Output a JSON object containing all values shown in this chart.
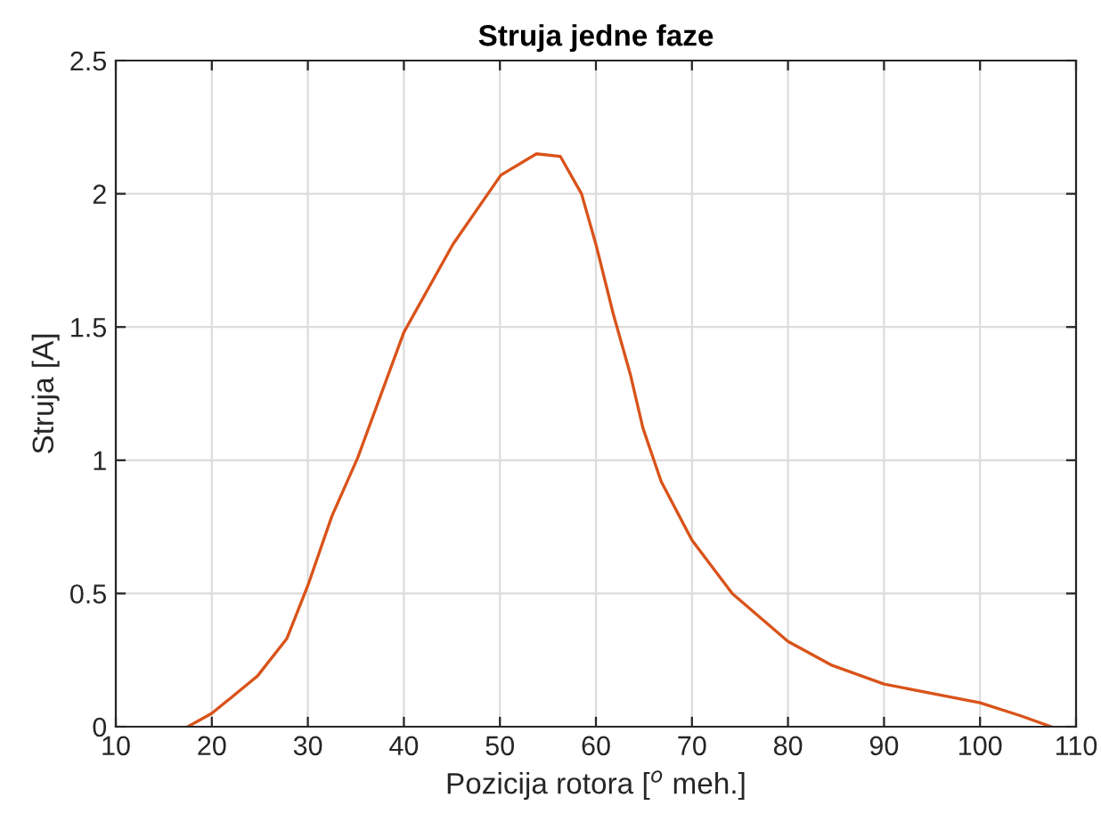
{
  "chart_data": {
    "type": "line",
    "title": "Struja jedne faze",
    "xlabel": "Pozicija rotora [$^{o}$ meh.]",
    "ylabel": "Struja [A]",
    "xlim": [
      10,
      110
    ],
    "xticks": [
      10,
      20,
      30,
      40,
      50,
      60,
      70,
      80,
      90,
      100,
      110
    ],
    "ylim": [
      0,
      2.5
    ],
    "yticks": [
      0,
      0.5,
      1,
      1.5,
      2,
      2.5
    ],
    "grid": true,
    "series": [
      {
        "color": "#d95319",
        "x": [
          17.5,
          20,
          24.75,
          27.8,
          30,
          32.5,
          35.2,
          40,
          45.1,
          50.1,
          53.8,
          56.3,
          58.5,
          60,
          61.8,
          63.6,
          64.9,
          66.8,
          70,
          74.2,
          80,
          84.6,
          90,
          95.7,
          100,
          104.3,
          107.4
        ],
        "values": [
          0,
          0.05,
          0.19,
          0.33,
          0.53,
          0.79,
          1.01,
          1.48,
          1.81,
          2.07,
          2.15,
          2.14,
          2.0,
          1.81,
          1.55,
          1.32,
          1.12,
          0.92,
          0.7,
          0.5,
          0.32,
          0.23,
          0.16,
          0.12,
          0.09,
          0.04,
          0
        ]
      }
    ]
  }
}
